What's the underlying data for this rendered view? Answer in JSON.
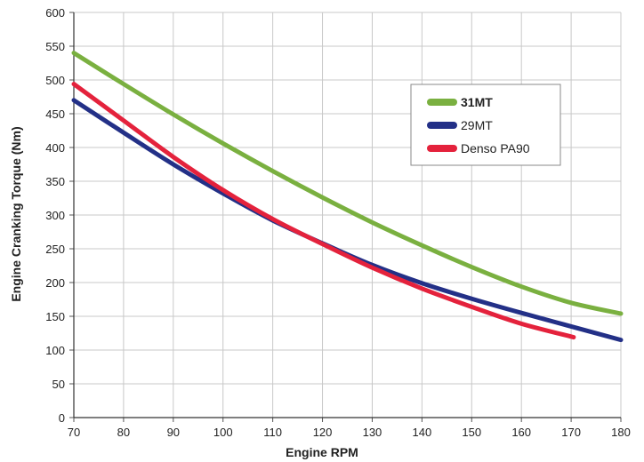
{
  "chart_data": {
    "type": "line",
    "xlabel": "Engine RPM",
    "ylabel": "Engine Cranking Torque (Nm)",
    "xlim": [
      70,
      180
    ],
    "ylim": [
      0,
      600
    ],
    "xticks": [
      70,
      80,
      90,
      100,
      110,
      120,
      130,
      140,
      150,
      160,
      170,
      180
    ],
    "yticks": [
      0,
      50,
      100,
      150,
      200,
      250,
      300,
      350,
      400,
      450,
      500,
      550,
      600
    ],
    "grid": true,
    "legend_position": "top-right",
    "series": [
      {
        "name": "31MT",
        "color": "#7ab040",
        "name_bold": true,
        "x": [
          70,
          80,
          90,
          100,
          110,
          120,
          130,
          140,
          150,
          160,
          170,
          180
        ],
        "y": [
          540,
          494,
          449,
          406,
          365,
          326,
          289,
          255,
          223,
          194,
          170,
          154
        ]
      },
      {
        "name": "29MT",
        "color": "#233087",
        "name_bold": false,
        "x": [
          70,
          80,
          90,
          100,
          110,
          120,
          130,
          140,
          150,
          160,
          170,
          180
        ],
        "y": [
          470,
          422,
          375,
          332,
          292,
          258,
          226,
          199,
          176,
          155,
          135,
          115
        ]
      },
      {
        "name": "Denso PA90",
        "color": "#e4223c",
        "name_bold": false,
        "x": [
          70,
          80,
          90,
          100,
          110,
          120,
          130,
          140,
          150,
          160,
          170.5
        ],
        "y": [
          494,
          440,
          386,
          337,
          294,
          257,
          222,
          191,
          164,
          139,
          119
        ]
      }
    ]
  }
}
